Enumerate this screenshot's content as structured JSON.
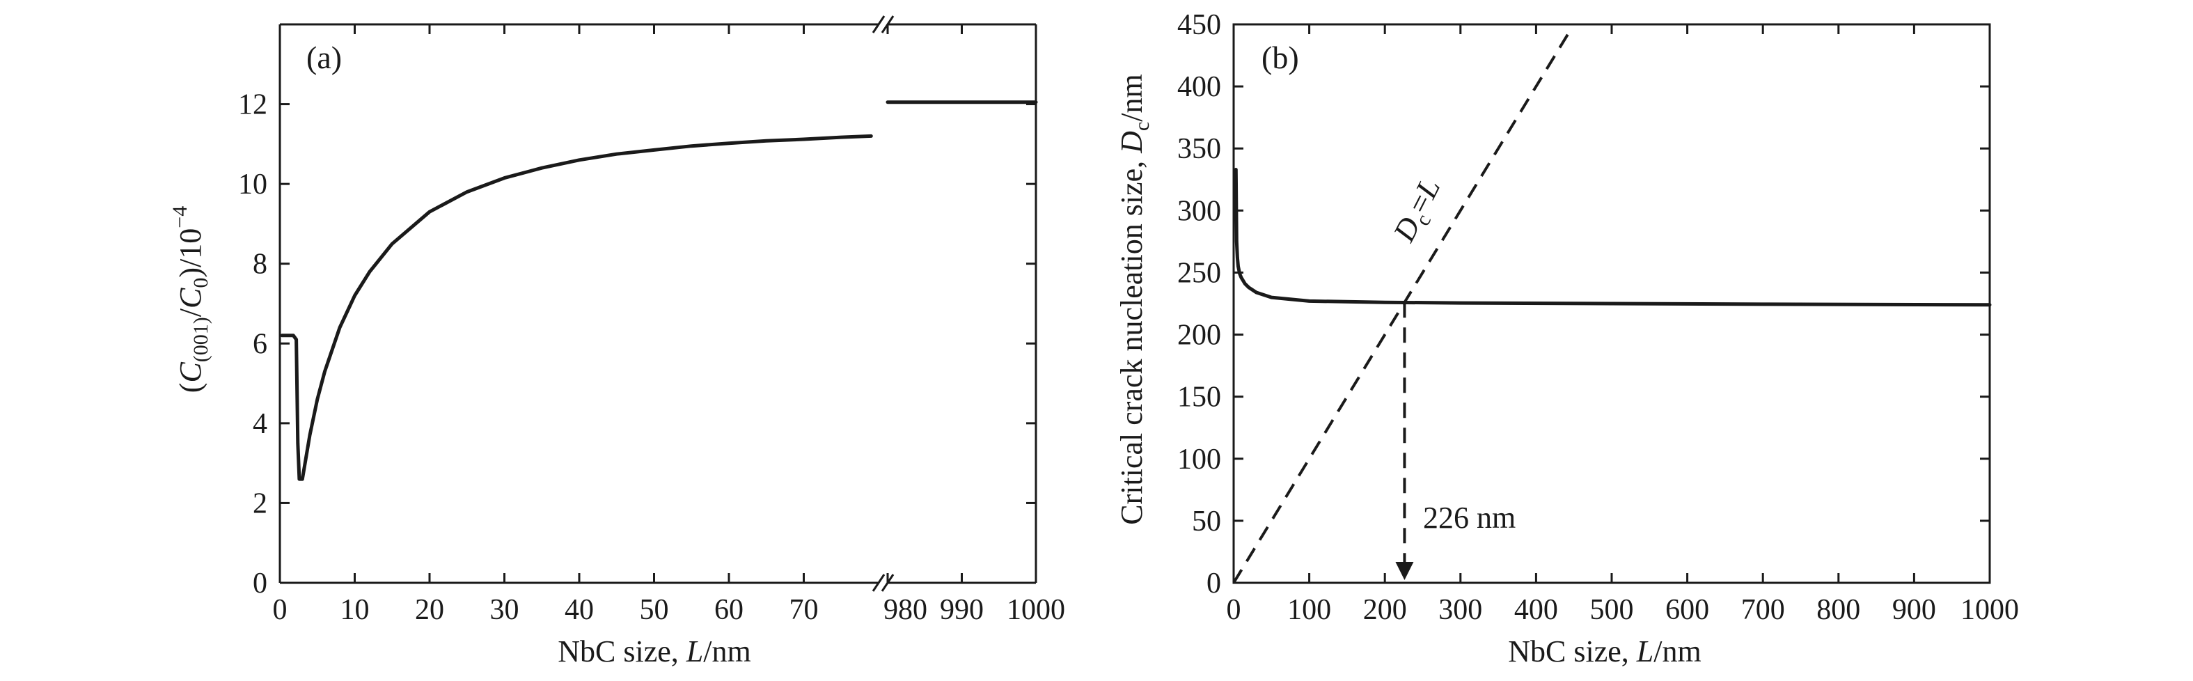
{
  "chart_data": [
    {
      "type": "line",
      "panel_label": "(a)",
      "xlabel": "NbC size, L/nm",
      "ylabel": "(C(001)/C0)/10−4",
      "axis_break": true,
      "x_segments": [
        {
          "range": [
            0,
            80
          ],
          "ticks": [
            0,
            10,
            20,
            30,
            40,
            50,
            60,
            70
          ],
          "tick_labels": [
            "0",
            "10",
            "20",
            "30",
            "40",
            "50",
            "60",
            "70"
          ]
        },
        {
          "range": [
            980,
            1000
          ],
          "ticks": [
            980,
            990,
            1000
          ],
          "tick_labels": [
            "980",
            "990",
            "1000"
          ]
        }
      ],
      "ylim": [
        0,
        14
      ],
      "yticks": [
        0,
        2,
        4,
        6,
        8,
        10,
        12
      ],
      "series": [
        {
          "segment": 0,
          "x": [
            0.3,
            1.8,
            2.2,
            2.4,
            2.6,
            3,
            4,
            5,
            6,
            8,
            10,
            12,
            15,
            20,
            25,
            30,
            35,
            40,
            45,
            50,
            55,
            60,
            65,
            70,
            75,
            79
          ],
          "y": [
            6.2,
            6.2,
            6.1,
            3.5,
            2.6,
            2.6,
            3.7,
            4.6,
            5.3,
            6.4,
            7.2,
            7.8,
            8.5,
            9.3,
            9.8,
            10.15,
            10.4,
            10.6,
            10.75,
            10.85,
            10.95,
            11.02,
            11.08,
            11.12,
            11.17,
            11.2
          ]
        },
        {
          "segment": 1,
          "x": [
            980,
            1000
          ],
          "y": [
            12.05,
            12.05
          ]
        }
      ]
    },
    {
      "type": "line",
      "panel_label": "(b)",
      "xlabel": "NbC size, L/nm",
      "ylabel": "Critical crack nucleation size, Dc/nm",
      "xlim": [
        0,
        1000
      ],
      "ylim": [
        0,
        450
      ],
      "xticks": [
        0,
        100,
        200,
        300,
        400,
        500,
        600,
        700,
        800,
        900,
        1000
      ],
      "yticks": [
        0,
        50,
        100,
        150,
        200,
        250,
        300,
        350,
        400,
        450
      ],
      "series": [
        {
          "style": "solid",
          "x": [
            2,
            3,
            4,
            5,
            6,
            8,
            10,
            15,
            20,
            30,
            50,
            100,
            200,
            300,
            500,
            700,
            1000
          ],
          "y": [
            310,
            333,
            275,
            262,
            255,
            249,
            246,
            241,
            238,
            234,
            230,
            227,
            226,
            225.5,
            225,
            224.5,
            224
          ]
        },
        {
          "style": "dashed",
          "x": [
            0,
            445
          ],
          "y": [
            0,
            445
          ]
        }
      ],
      "annotations": {
        "line_label": "Dc=L",
        "marker_value": 226,
        "marker_text": "226 nm"
      }
    }
  ]
}
